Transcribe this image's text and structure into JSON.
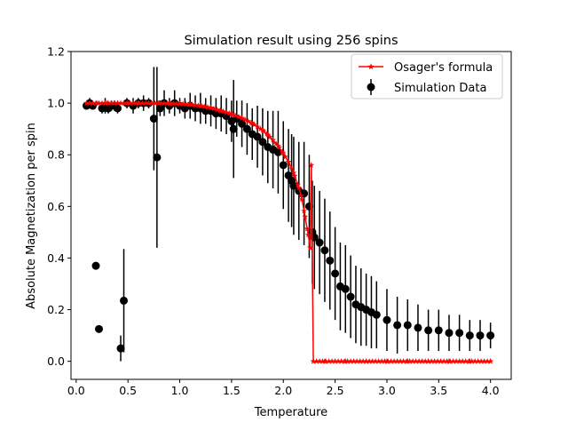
{
  "chart_data": {
    "type": "scatter",
    "title": "Simulation result using 256 spins",
    "xlabel": "Temperature",
    "ylabel": "Absolute Magnetization per spin",
    "xlim": [
      -0.05,
      4.2
    ],
    "ylim": [
      -0.07,
      1.2
    ],
    "xticks": [
      0.0,
      0.5,
      1.0,
      1.5,
      2.0,
      2.5,
      3.0,
      3.5,
      4.0
    ],
    "xtick_labels": [
      "0.0",
      "0.5",
      "1.0",
      "1.5",
      "2.0",
      "2.5",
      "3.0",
      "3.5",
      "4.0"
    ],
    "yticks": [
      0.0,
      0.2,
      0.4,
      0.6,
      0.8,
      1.0,
      1.2
    ],
    "ytick_labels": [
      "0.0",
      "0.2",
      "0.4",
      "0.6",
      "0.8",
      "1.0",
      "1.2"
    ],
    "grid": false,
    "legend_position": "top-right",
    "series": [
      {
        "name": "Osager's formula",
        "kind": "line",
        "color": "#ff0000",
        "marker": "star",
        "x": [
          0.1,
          0.2,
          0.3,
          0.4,
          0.5,
          0.6,
          0.7,
          0.8,
          0.9,
          1.0,
          1.1,
          1.2,
          1.3,
          1.4,
          1.5,
          1.6,
          1.7,
          1.8,
          1.85,
          1.9,
          1.95,
          2.0,
          2.05,
          2.1,
          2.15,
          2.18,
          2.21,
          2.24,
          2.26,
          2.27,
          2.29,
          2.4,
          2.6,
          2.8,
          3.0,
          3.2,
          3.4,
          3.6,
          3.8,
          4.0
        ],
        "y": [
          1.0,
          1.0,
          1.0,
          1.0,
          1.0,
          1.0,
          1.0,
          1.0,
          0.999,
          0.998,
          0.995,
          0.99,
          0.982,
          0.97,
          0.958,
          0.942,
          0.922,
          0.895,
          0.877,
          0.857,
          0.834,
          0.806,
          0.772,
          0.73,
          0.672,
          0.627,
          0.56,
          0.49,
          0.44,
          0.76,
          0.0,
          0.0,
          0.0,
          0.0,
          0.0,
          0.0,
          0.0,
          0.0,
          0.0,
          0.0
        ]
      },
      {
        "name": "Simulation Data",
        "kind": "errorbar",
        "color": "#000000",
        "marker": "circle",
        "x": [
          0.1,
          0.13,
          0.16,
          0.19,
          0.22,
          0.25,
          0.28,
          0.31,
          0.34,
          0.37,
          0.4,
          0.43,
          0.46,
          0.49,
          0.55,
          0.6,
          0.65,
          0.7,
          0.75,
          0.78,
          0.81,
          0.85,
          0.9,
          0.95,
          1.0,
          1.05,
          1.1,
          1.15,
          1.2,
          1.25,
          1.3,
          1.35,
          1.4,
          1.45,
          1.5,
          1.52,
          1.55,
          1.6,
          1.65,
          1.7,
          1.75,
          1.8,
          1.85,
          1.9,
          1.95,
          2.0,
          2.05,
          2.08,
          2.1,
          2.15,
          2.2,
          2.25,
          2.28,
          2.3,
          2.35,
          2.4,
          2.45,
          2.5,
          2.55,
          2.6,
          2.65,
          2.7,
          2.75,
          2.8,
          2.85,
          2.9,
          3.0,
          3.1,
          3.2,
          3.3,
          3.4,
          3.5,
          3.6,
          3.7,
          3.8,
          3.9,
          4.0
        ],
        "y": [
          0.99,
          1.0,
          0.99,
          0.37,
          0.125,
          0.98,
          0.99,
          0.98,
          0.99,
          0.99,
          0.98,
          0.05,
          0.235,
          1.0,
          0.99,
          1.0,
          1.0,
          1.0,
          0.94,
          0.79,
          0.98,
          1.0,
          0.99,
          1.0,
          0.99,
          0.98,
          0.99,
          0.98,
          0.98,
          0.97,
          0.97,
          0.96,
          0.96,
          0.95,
          0.93,
          0.9,
          0.94,
          0.92,
          0.9,
          0.88,
          0.87,
          0.85,
          0.83,
          0.82,
          0.81,
          0.76,
          0.72,
          0.7,
          0.68,
          0.66,
          0.65,
          0.6,
          0.5,
          0.48,
          0.46,
          0.43,
          0.39,
          0.34,
          0.29,
          0.28,
          0.25,
          0.22,
          0.21,
          0.2,
          0.19,
          0.18,
          0.16,
          0.14,
          0.14,
          0.13,
          0.12,
          0.12,
          0.11,
          0.11,
          0.1,
          0.1,
          0.1
        ],
        "yerr": [
          0.01,
          0.02,
          0.01,
          0.01,
          0.01,
          0.02,
          0.03,
          0.02,
          0.02,
          0.02,
          0.02,
          0.05,
          0.2,
          0.02,
          0.03,
          0.02,
          0.03,
          0.02,
          0.2,
          0.35,
          0.03,
          0.05,
          0.03,
          0.05,
          0.03,
          0.04,
          0.05,
          0.05,
          0.06,
          0.05,
          0.06,
          0.06,
          0.07,
          0.07,
          0.08,
          0.19,
          0.07,
          0.09,
          0.1,
          0.1,
          0.12,
          0.13,
          0.14,
          0.15,
          0.16,
          0.17,
          0.18,
          0.18,
          0.19,
          0.19,
          0.2,
          0.2,
          0.2,
          0.2,
          0.2,
          0.2,
          0.19,
          0.18,
          0.17,
          0.17,
          0.16,
          0.15,
          0.15,
          0.14,
          0.14,
          0.13,
          0.12,
          0.11,
          0.1,
          0.09,
          0.08,
          0.08,
          0.07,
          0.07,
          0.06,
          0.06,
          0.05
        ]
      }
    ]
  }
}
